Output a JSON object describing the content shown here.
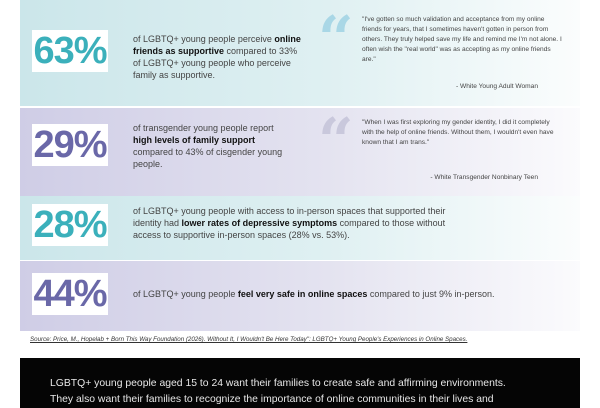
{
  "stats": [
    {
      "value": "63%",
      "pre": "of LGBTQ+ young people perceive ",
      "bold": "online friends as supportive",
      "post": " compared to 33% of LGBTQ+ young people who perceive family as supportive.",
      "quote": "\"I've gotten so much validation and acceptance from my online friends for years, that I sometimes haven't gotten in person from others. They truly helped save my life and remind me I'm not alone. I often wish the \"real world\" was as accepting as my online friends are.\"",
      "attribution": "- White Young Adult Woman"
    },
    {
      "value": "29%",
      "pre": "of transgender young people report ",
      "bold": "high levels of family support",
      "post": " compared to 43% of cisgender young people.",
      "quote": "\"When I was first exploring my gender identity, I did it completely with the help of online friends. Without them, I wouldn't even have known that I am trans.\"",
      "attribution": "- White Transgender Nonbinary Teen"
    },
    {
      "value": "28%",
      "pre": "of LGBTQ+ young people with access to in-person spaces that supported their identity had ",
      "bold": "lower rates of depressive symptoms",
      "post": " compared to those without access to supportive in-person spaces (28% vs. 53%)."
    },
    {
      "value": "44%",
      "pre": "of LGBTQ+ young people ",
      "bold": "feel very safe in online spaces",
      "post": " compared to just 9% in-person."
    }
  ],
  "source": "Source: Price, M., Hopelab + Born This Way Foundation (2026). Without It, I Wouldn't Be Here Today\": LGBTQ+ Young People's Experiences in Online Spaces.",
  "callout": {
    "line1": "LGBTQ+ young people aged 15 to 24 want their families to create safe and affirming environments.",
    "line2": "They also want their families to recognize the importance of online communities in their lives and"
  },
  "colors": {
    "teal": "#3bb0bb",
    "purple": "#6a68a8",
    "teal_quote": "#a9d7e6",
    "purple_quote": "#c9c8dc"
  }
}
